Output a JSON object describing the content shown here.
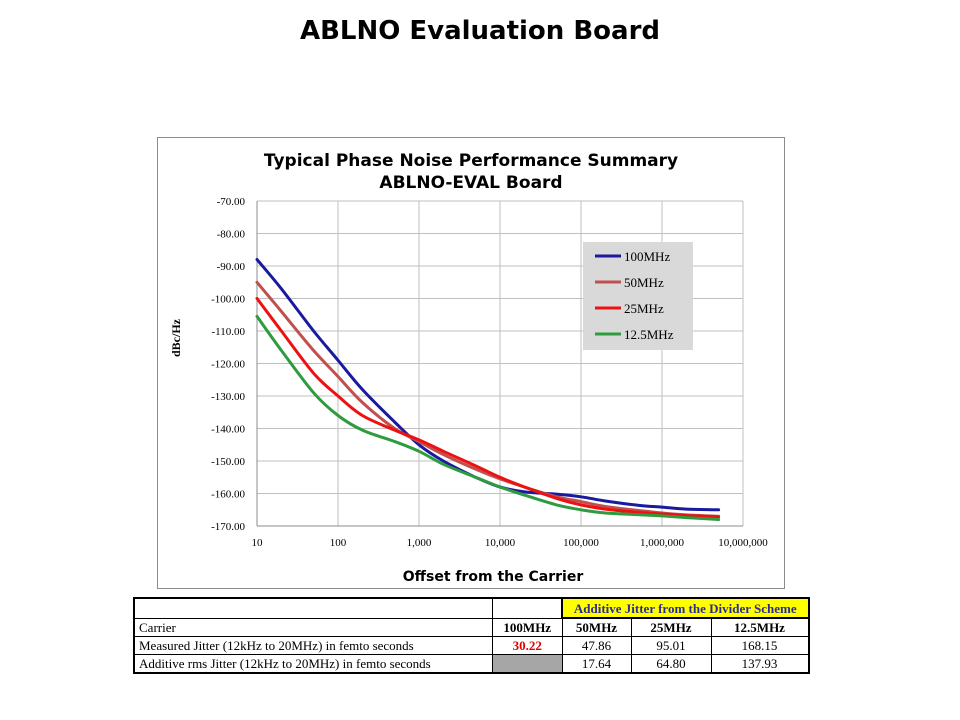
{
  "slide": {
    "title": "ABLNO Evaluation Board"
  },
  "chart_data": {
    "type": "line",
    "title": "Typical Phase Noise Performance Summary",
    "subtitle": "ABLNO-EVAL Board",
    "xlabel": "Offset from the Carrier",
    "ylabel": "dBc/Hz",
    "xscale": "log",
    "xlim": [
      10,
      10000000
    ],
    "ylim": [
      -170,
      -70
    ],
    "x_ticks": [
      "10",
      "100",
      "1,000",
      "10,000",
      "100,000",
      "1,000,000",
      "10,000,000"
    ],
    "y_ticks": [
      "-70.00",
      "-80.00",
      "-90.00",
      "-100.00",
      "-110.00",
      "-120.00",
      "-130.00",
      "-140.00",
      "-150.00",
      "-160.00",
      "-170.00"
    ],
    "grid": true,
    "legend_position": "top-right",
    "series": [
      {
        "name": "100MHz",
        "color": "#1a1aa0",
        "x": [
          10,
          20,
          50,
          100,
          200,
          500,
          1000,
          2000,
          5000,
          10000,
          20000,
          50000,
          100000,
          200000,
          500000,
          1000000,
          2000000,
          5000000
        ],
        "y": [
          -88,
          -97,
          -110,
          -119,
          -128,
          -138,
          -145,
          -150,
          -155,
          -158,
          -159.5,
          -160.2,
          -161,
          -162.3,
          -163.6,
          -164.2,
          -164.8,
          -165
        ]
      },
      {
        "name": "50MHz",
        "color": "#c0504d",
        "x": [
          10,
          20,
          50,
          100,
          200,
          500,
          1000,
          2000,
          5000,
          10000,
          20000,
          50000,
          100000,
          200000,
          500000,
          1000000,
          2000000,
          5000000
        ],
        "y": [
          -95,
          -104,
          -116,
          -124,
          -132,
          -140,
          -144,
          -148,
          -152.5,
          -155.5,
          -158,
          -161,
          -162.5,
          -164,
          -165.2,
          -166,
          -166.6,
          -167
        ]
      },
      {
        "name": "25MHz",
        "color": "#ee1111",
        "x": [
          10,
          20,
          50,
          100,
          200,
          500,
          1000,
          2000,
          5000,
          10000,
          20000,
          50000,
          100000,
          200000,
          500000,
          1000000,
          2000000,
          5000000
        ],
        "y": [
          -100,
          -110,
          -123,
          -130,
          -136,
          -140.5,
          -143.5,
          -147,
          -151.5,
          -155,
          -158,
          -161.5,
          -163.5,
          -164.8,
          -165.8,
          -166.3,
          -166.8,
          -167.2
        ]
      },
      {
        "name": "12.5MHz",
        "color": "#2e9b3e",
        "x": [
          10,
          20,
          50,
          100,
          200,
          500,
          1000,
          2000,
          5000,
          10000,
          20000,
          50000,
          100000,
          200000,
          500000,
          1000000,
          2000000,
          5000000
        ],
        "y": [
          -105.5,
          -116,
          -129,
          -136,
          -140.5,
          -144,
          -147,
          -151,
          -155,
          -158,
          -160.5,
          -163.5,
          -165,
          -166,
          -166.5,
          -166.9,
          -167.4,
          -168
        ]
      }
    ]
  },
  "table": {
    "header_note": "Additive Jitter from the Divider Scheme",
    "rows": [
      {
        "label": "Carrier",
        "cells": [
          "100MHz",
          "50MHz",
          "25MHz",
          "12.5MHz"
        ]
      },
      {
        "label": "Measured Jitter (12kHz to 20MHz) in femto seconds",
        "cells": [
          "30.22",
          "47.86",
          "95.01",
          "168.15"
        ]
      },
      {
        "label": "Additive rms Jitter (12kHz to 20MHz) in femto seconds",
        "cells": [
          "",
          "17.64",
          "64.80",
          "137.93"
        ]
      }
    ]
  }
}
